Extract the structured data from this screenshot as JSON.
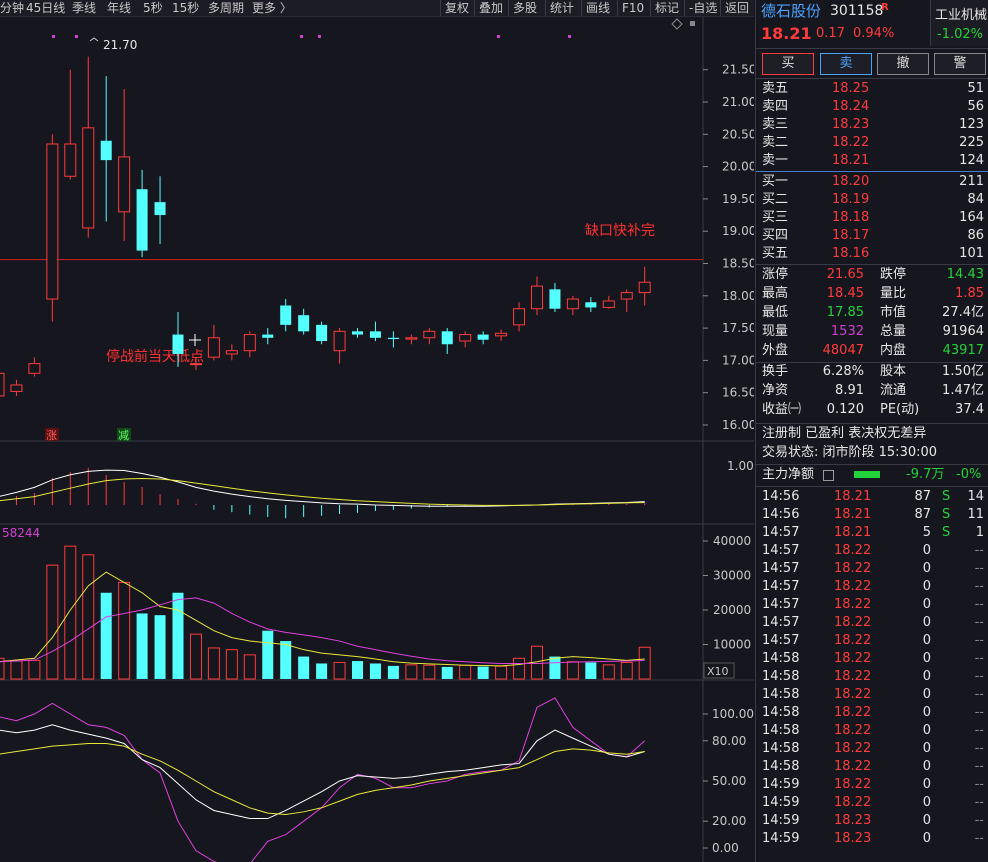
{
  "toolbar": {
    "left": [
      "分钟",
      "45日线",
      "季线",
      "年线",
      "5秒",
      "15秒",
      "多周期",
      "更多 〉"
    ],
    "right": [
      "复权",
      "叠加",
      "多股",
      "统计",
      "画线",
      "F10",
      "标记",
      "-自选",
      "返回"
    ]
  },
  "main_chart": {
    "y_ticks": [
      "21.50",
      "21.00",
      "20.50",
      "20.00",
      "19.50",
      "19.00",
      "18.50",
      "18.00",
      "17.50",
      "17.00",
      "16.50",
      "16.00"
    ],
    "high_label": "21.70",
    "gap_label": "缺口快补完",
    "low_label": "停战前当天低点",
    "badge_zhang": "涨",
    "badge_jian": "减",
    "gap_line_price": 18.56
  },
  "chart_data": {
    "type": "candlestick",
    "candles": [
      {
        "o": 16.45,
        "c": 16.8,
        "h": 16.95,
        "l": 16.35
      },
      {
        "o": 16.52,
        "c": 16.62,
        "h": 16.7,
        "l": 16.45
      },
      {
        "o": 16.8,
        "c": 16.95,
        "h": 17.05,
        "l": 16.75
      },
      {
        "o": 17.95,
        "c": 20.35,
        "h": 20.5,
        "l": 17.6
      },
      {
        "o": 19.85,
        "c": 20.35,
        "h": 21.5,
        "l": 19.8
      },
      {
        "o": 19.05,
        "c": 20.6,
        "h": 21.7,
        "l": 18.9
      },
      {
        "o": 20.4,
        "c": 20.1,
        "h": 21.4,
        "l": 19.15
      },
      {
        "o": 19.3,
        "c": 20.15,
        "h": 21.2,
        "l": 18.85
      },
      {
        "o": 19.65,
        "c": 18.7,
        "h": 19.95,
        "l": 18.6
      },
      {
        "o": 19.45,
        "c": 19.25,
        "h": 19.85,
        "l": 18.8
      },
      {
        "o": 17.4,
        "c": 17.1,
        "h": 17.75,
        "l": 16.9
      },
      {
        "o": 16.95,
        "c": 16.95,
        "h": 17.05,
        "l": 16.85
      },
      {
        "o": 17.05,
        "c": 17.35,
        "h": 17.55,
        "l": 17.0
      },
      {
        "o": 17.1,
        "c": 17.15,
        "h": 17.25,
        "l": 17.0
      },
      {
        "o": 17.15,
        "c": 17.4,
        "h": 17.45,
        "l": 17.05
      },
      {
        "o": 17.4,
        "c": 17.35,
        "h": 17.5,
        "l": 17.25
      },
      {
        "o": 17.85,
        "c": 17.55,
        "h": 17.95,
        "l": 17.45
      },
      {
        "o": 17.7,
        "c": 17.45,
        "h": 17.8,
        "l": 17.4
      },
      {
        "o": 17.55,
        "c": 17.3,
        "h": 17.6,
        "l": 17.25
      },
      {
        "o": 17.15,
        "c": 17.45,
        "h": 17.5,
        "l": 16.95
      },
      {
        "o": 17.45,
        "c": 17.4,
        "h": 17.5,
        "l": 17.35
      },
      {
        "o": 17.45,
        "c": 17.35,
        "h": 17.6,
        "l": 17.3
      },
      {
        "o": 17.35,
        "c": 17.33,
        "h": 17.45,
        "l": 17.2
      },
      {
        "o": 17.33,
        "c": 17.35,
        "h": 17.4,
        "l": 17.25
      },
      {
        "o": 17.35,
        "c": 17.45,
        "h": 17.5,
        "l": 17.25
      },
      {
        "o": 17.45,
        "c": 17.25,
        "h": 17.5,
        "l": 17.1
      },
      {
        "o": 17.3,
        "c": 17.4,
        "h": 17.45,
        "l": 17.2
      },
      {
        "o": 17.4,
        "c": 17.32,
        "h": 17.45,
        "l": 17.25
      },
      {
        "o": 17.38,
        "c": 17.42,
        "h": 17.48,
        "l": 17.3
      },
      {
        "o": 17.55,
        "c": 17.8,
        "h": 17.9,
        "l": 17.45
      },
      {
        "o": 17.8,
        "c": 18.15,
        "h": 18.3,
        "l": 17.7
      },
      {
        "o": 18.1,
        "c": 17.8,
        "h": 18.2,
        "l": 17.75
      },
      {
        "o": 17.8,
        "c": 17.95,
        "h": 18.0,
        "l": 17.7
      },
      {
        "o": 17.9,
        "c": 17.82,
        "h": 17.98,
        "l": 17.75
      },
      {
        "o": 17.82,
        "c": 17.92,
        "h": 18.0,
        "l": 17.8
      },
      {
        "o": 17.95,
        "c": 18.05,
        "h": 18.1,
        "l": 17.75
      },
      {
        "o": 18.05,
        "c": 18.21,
        "h": 18.45,
        "l": 17.85
      }
    ],
    "volume": [
      6000,
      5200,
      5400,
      33000,
      38500,
      36000,
      25000,
      28000,
      19000,
      18500,
      25000,
      13000,
      9000,
      8500,
      7000,
      14000,
      11000,
      6500,
      4500,
      4800,
      5200,
      4500,
      3800,
      4100,
      4000,
      3500,
      4000,
      3600,
      3700,
      6000,
      9500,
      6500,
      5000,
      4800,
      4100,
      4800,
      9200
    ],
    "volume_ticks": [
      "40000",
      "30000",
      "20000",
      "10000"
    ],
    "volume_label": "58244",
    "volume_unit": "X10",
    "macd_tick": "1.00",
    "kdj_ticks": [
      "100.00",
      "80.00",
      "50.00",
      "20.00",
      "0.00"
    ]
  },
  "quote": {
    "name": "德石股份",
    "code": "301158",
    "tag": "R",
    "industry": "工业机械",
    "industry_change": "-1.02%",
    "price": "18.21",
    "change": "0.17",
    "change_pct": "0.94%",
    "buttons": [
      "买",
      "卖",
      "撤",
      "警"
    ],
    "asks": [
      {
        "label": "卖五",
        "price": "18.25",
        "vol": "51"
      },
      {
        "label": "卖四",
        "price": "18.24",
        "vol": "56"
      },
      {
        "label": "卖三",
        "price": "18.23",
        "vol": "123"
      },
      {
        "label": "卖二",
        "price": "18.22",
        "vol": "225"
      },
      {
        "label": "卖一",
        "price": "18.21",
        "vol": "124"
      }
    ],
    "bids": [
      {
        "label": "买一",
        "price": "18.20",
        "vol": "211"
      },
      {
        "label": "买二",
        "price": "18.19",
        "vol": "84"
      },
      {
        "label": "买三",
        "price": "18.18",
        "vol": "164"
      },
      {
        "label": "买四",
        "price": "18.17",
        "vol": "86"
      },
      {
        "label": "买五",
        "price": "18.16",
        "vol": "101"
      }
    ],
    "stats": [
      [
        "涨停",
        "21.65",
        "red",
        "跌停",
        "14.43",
        "green"
      ],
      [
        "最高",
        "18.45",
        "red",
        "量比",
        "1.85",
        "red"
      ],
      [
        "最低",
        "17.85",
        "green",
        "市值",
        "27.4亿",
        "white"
      ],
      [
        "现量",
        "1532",
        "purple",
        "总量",
        "91964",
        "white"
      ],
      [
        "外盘",
        "48047",
        "red",
        "内盘",
        "43917",
        "green"
      ]
    ],
    "stats2": [
      [
        "换手",
        "6.28%",
        "股本",
        "1.50亿"
      ],
      [
        "净资",
        "8.91",
        "流通",
        "1.47亿"
      ],
      [
        "收益㈠",
        "0.120",
        "PE(动)",
        "37.4"
      ]
    ],
    "notes1": "注册制 已盈利 表决权无差异",
    "notes2": "交易状态: 闭市阶段 15:30:00",
    "fund_label": "主力净额",
    "fund_value": "-9.7万",
    "fund_pct": "-0%",
    "ticks": [
      [
        "14:56",
        "18.21",
        "87",
        "S",
        "14"
      ],
      [
        "14:56",
        "18.21",
        "87",
        "S",
        "11"
      ],
      [
        "14:57",
        "18.21",
        "5",
        "S",
        "1"
      ],
      [
        "14:57",
        "18.22",
        "0",
        "",
        "--"
      ],
      [
        "14:57",
        "18.22",
        "0",
        "",
        "--"
      ],
      [
        "14:57",
        "18.22",
        "0",
        "",
        "--"
      ],
      [
        "14:57",
        "18.22",
        "0",
        "",
        "--"
      ],
      [
        "14:57",
        "18.22",
        "0",
        "",
        "--"
      ],
      [
        "14:57",
        "18.22",
        "0",
        "",
        "--"
      ],
      [
        "14:58",
        "18.22",
        "0",
        "",
        "--"
      ],
      [
        "14:58",
        "18.22",
        "0",
        "",
        "--"
      ],
      [
        "14:58",
        "18.22",
        "0",
        "",
        "--"
      ],
      [
        "14:58",
        "18.22",
        "0",
        "",
        "--"
      ],
      [
        "14:58",
        "18.22",
        "0",
        "",
        "--"
      ],
      [
        "14:58",
        "18.22",
        "0",
        "",
        "--"
      ],
      [
        "14:58",
        "18.22",
        "0",
        "",
        "--"
      ],
      [
        "14:59",
        "18.22",
        "0",
        "",
        "--"
      ],
      [
        "14:59",
        "18.22",
        "0",
        "",
        "--"
      ],
      [
        "14:59",
        "18.23",
        "0",
        "",
        "--"
      ],
      [
        "14:59",
        "18.23",
        "0",
        "",
        "--"
      ]
    ]
  }
}
